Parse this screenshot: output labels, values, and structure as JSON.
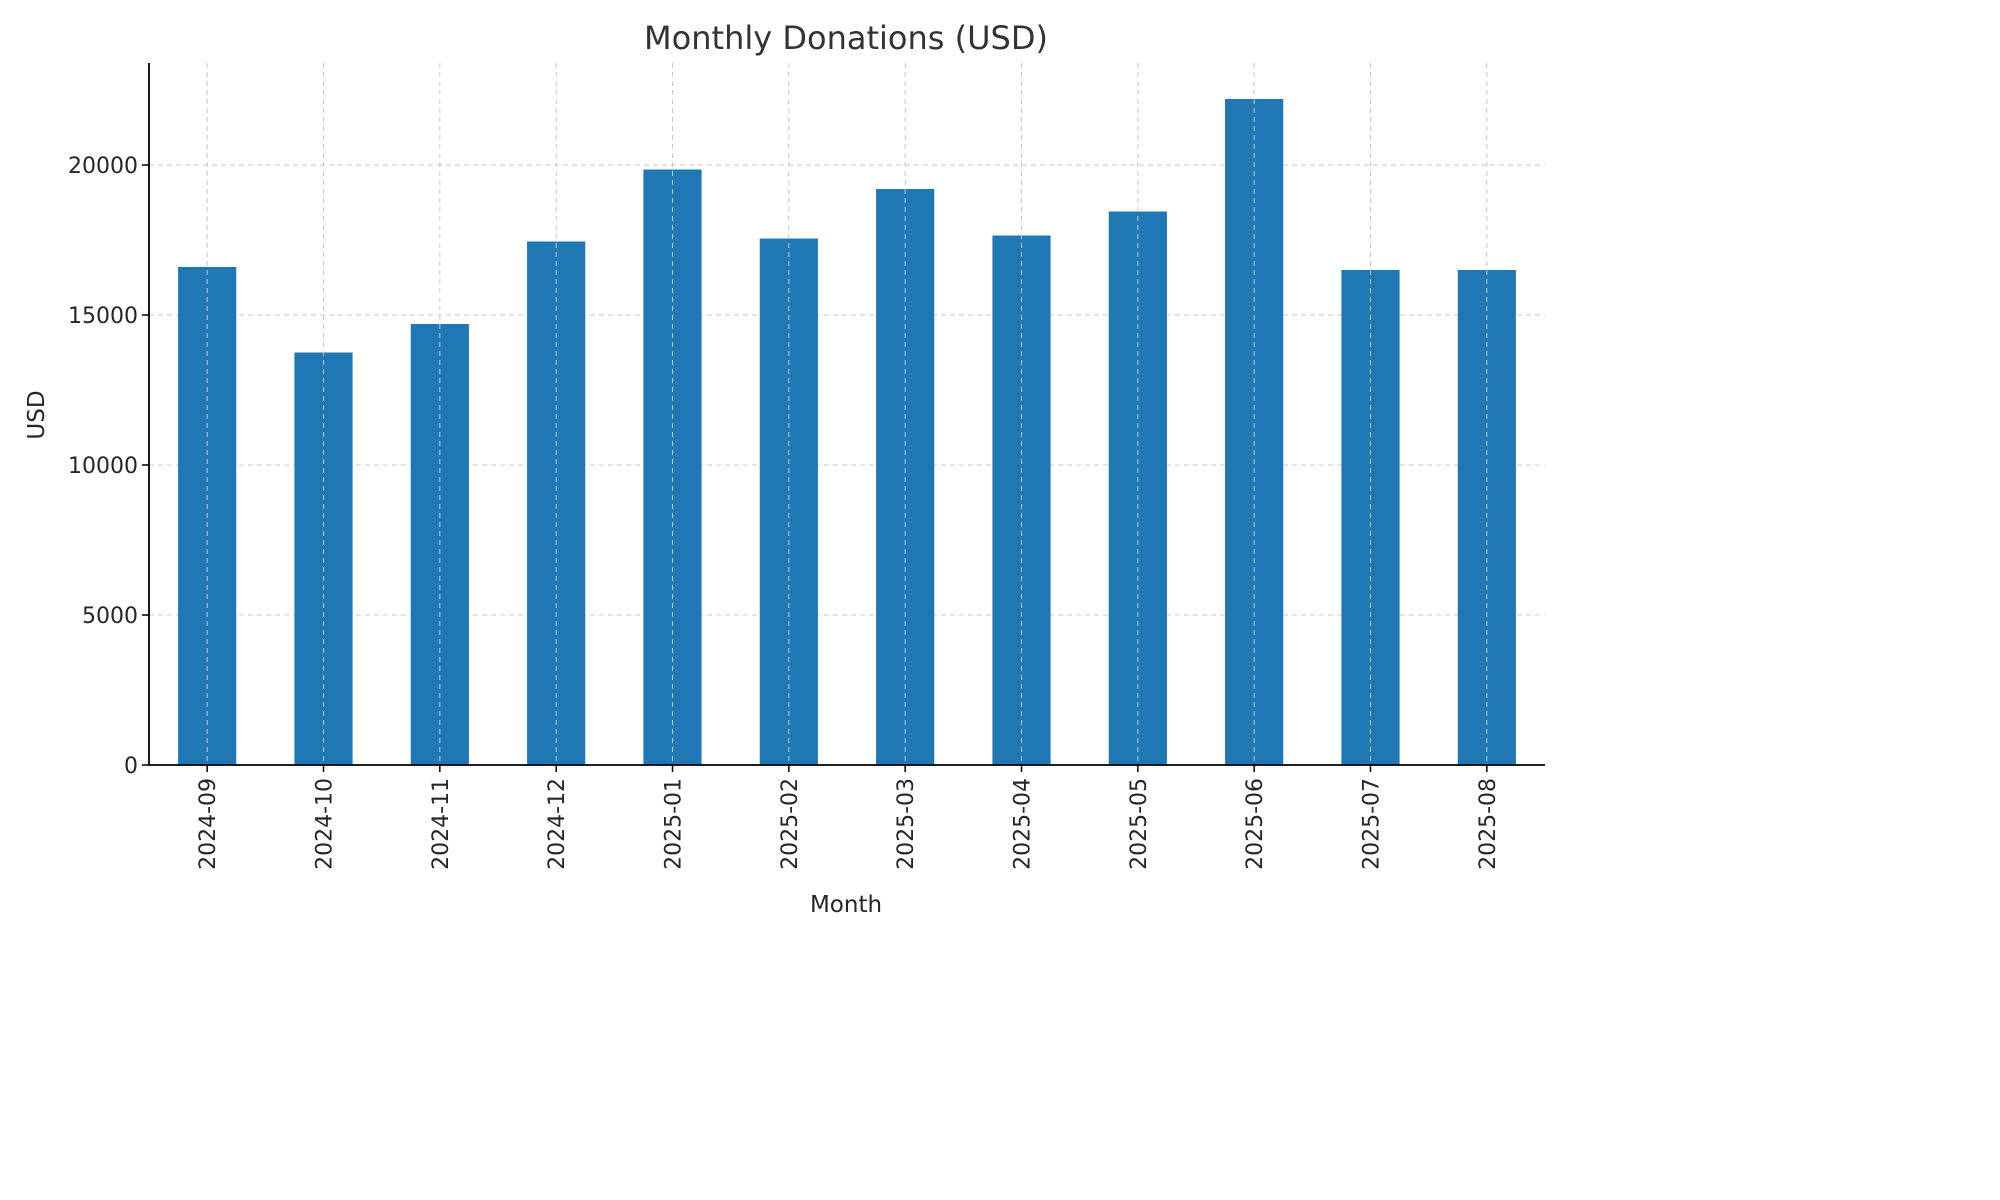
{
  "chart_data": {
    "type": "bar",
    "title": "Monthly Donations (USD)",
    "xlabel": "Month",
    "ylabel": "USD",
    "categories": [
      "2024-09",
      "2024-10",
      "2024-11",
      "2024-12",
      "2025-01",
      "2025-02",
      "2025-03",
      "2025-04",
      "2025-05",
      "2025-06",
      "2025-07",
      "2025-08"
    ],
    "values": [
      16600,
      13750,
      14700,
      17450,
      19850,
      17550,
      19200,
      17650,
      18450,
      22200,
      16500,
      16500
    ],
    "ylim": [
      0,
      23400
    ],
    "yticks": [
      0,
      5000,
      10000,
      15000,
      20000
    ],
    "grid": true,
    "bar_color": "#1f77b4"
  }
}
